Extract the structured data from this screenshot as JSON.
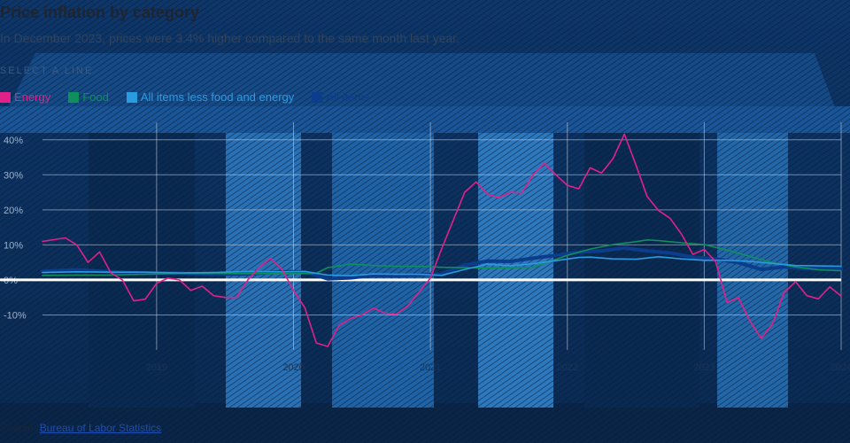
{
  "header": {
    "title": "Price inflation by category",
    "subtitle": "In December 2023, prices were 3.4% higher compared to the same month last year.",
    "select_label": "SELECT A LINE"
  },
  "legend": [
    {
      "label": "Energy",
      "color": "#e0218a"
    },
    {
      "label": "Food",
      "color": "#0e8f5c"
    },
    {
      "label": "All items less food and energy",
      "color": "#2b9be0"
    },
    {
      "label": "All items",
      "color": "#0b3d8c"
    }
  ],
  "source": {
    "label": "Source:",
    "link_text": "Bureau of Labor Statistics"
  },
  "chart_data": {
    "type": "line",
    "title": "Price inflation by category",
    "ylim": [
      -20,
      45
    ],
    "yticks": [
      -10,
      0,
      10,
      20,
      30,
      40
    ],
    "ytick_labels": [
      "-10%",
      "0%",
      "10%",
      "20%",
      "30%",
      "40%"
    ],
    "xlim": [
      "2018-03",
      "2024-01"
    ],
    "xticks": [
      "2019-01",
      "2020-01",
      "2021-01",
      "2022-01",
      "2023-01",
      "2024-01"
    ],
    "xtick_labels": [
      "2019",
      "2020",
      "2021",
      "2022",
      "2023",
      "2024"
    ],
    "grid": true,
    "legend_position": "top-left",
    "series": [
      {
        "name": "Energy",
        "color": "#e0218a",
        "points": [
          [
            "2018-03",
            11
          ],
          [
            "2018-04",
            11.5
          ],
          [
            "2018-05",
            12
          ],
          [
            "2018-06",
            10
          ],
          [
            "2018-07",
            5
          ],
          [
            "2018-08",
            8
          ],
          [
            "2018-09",
            2
          ],
          [
            "2018-10",
            0
          ],
          [
            "2018-11",
            -6
          ],
          [
            "2018-12",
            -5.5
          ],
          [
            "2019-01",
            -1
          ],
          [
            "2019-02",
            0.5
          ],
          [
            "2019-03",
            0
          ],
          [
            "2019-04",
            -3
          ],
          [
            "2019-05",
            -1.8
          ],
          [
            "2019-06",
            -4.5
          ],
          [
            "2019-07",
            -5
          ],
          [
            "2019-08",
            -5
          ],
          [
            "2019-09",
            0
          ],
          [
            "2019-10",
            3.5
          ],
          [
            "2019-11",
            6.2
          ],
          [
            "2019-12",
            3
          ],
          [
            "2020-01",
            -3
          ],
          [
            "2020-02",
            -8
          ],
          [
            "2020-03",
            -18
          ],
          [
            "2020-04",
            -19
          ],
          [
            "2020-05",
            -13
          ],
          [
            "2020-06",
            -11
          ],
          [
            "2020-07",
            -10
          ],
          [
            "2020-08",
            -8
          ],
          [
            "2020-09",
            -9.5
          ],
          [
            "2020-10",
            -9.8
          ],
          [
            "2020-11",
            -7.5
          ],
          [
            "2020-12",
            -3.5
          ],
          [
            "2021-01",
            0.5
          ],
          [
            "2021-02",
            9
          ],
          [
            "2021-03",
            17
          ],
          [
            "2021-04",
            25
          ],
          [
            "2021-05",
            28
          ],
          [
            "2021-06",
            24.5
          ],
          [
            "2021-07",
            23.5
          ],
          [
            "2021-08",
            25
          ],
          [
            "2021-09",
            24.8
          ],
          [
            "2021-10",
            30
          ],
          [
            "2021-11",
            33.3
          ],
          [
            "2021-12",
            30
          ],
          [
            "2022-01",
            27
          ],
          [
            "2022-02",
            26
          ],
          [
            "2022-03",
            32
          ],
          [
            "2022-04",
            30.5
          ],
          [
            "2022-05",
            34.6
          ],
          [
            "2022-06",
            41.6
          ],
          [
            "2022-07",
            32.9
          ],
          [
            "2022-08",
            23.8
          ],
          [
            "2022-09",
            19.8
          ],
          [
            "2022-10",
            17.6
          ],
          [
            "2022-11",
            13.1
          ],
          [
            "2022-12",
            7.3
          ],
          [
            "2023-01",
            8.7
          ],
          [
            "2023-02",
            5.2
          ],
          [
            "2023-03",
            -6.4
          ],
          [
            "2023-04",
            -5.1
          ],
          [
            "2023-05",
            -11.7
          ],
          [
            "2023-06",
            -16.7
          ],
          [
            "2023-07",
            -12.5
          ],
          [
            "2023-08",
            -3.6
          ],
          [
            "2023-09",
            -0.5
          ],
          [
            "2023-10",
            -4.5
          ],
          [
            "2023-11",
            -5.4
          ],
          [
            "2023-12",
            -2
          ],
          [
            "2024-01",
            -4.6
          ]
        ]
      },
      {
        "name": "Food",
        "color": "#0e8f5c",
        "points": [
          [
            "2018-03",
            1.3
          ],
          [
            "2018-06",
            1.4
          ],
          [
            "2018-09",
            1.4
          ],
          [
            "2018-12",
            1.6
          ],
          [
            "2019-03",
            1.9
          ],
          [
            "2019-06",
            1.9
          ],
          [
            "2019-09",
            1.8
          ],
          [
            "2019-12",
            1.8
          ],
          [
            "2020-01",
            1.8
          ],
          [
            "2020-02",
            1.8
          ],
          [
            "2020-03",
            1.9
          ],
          [
            "2020-04",
            3.5
          ],
          [
            "2020-05",
            4
          ],
          [
            "2020-06",
            4.5
          ],
          [
            "2020-08",
            4.1
          ],
          [
            "2020-10",
            3.9
          ],
          [
            "2020-12",
            3.9
          ],
          [
            "2021-02",
            3.6
          ],
          [
            "2021-04",
            3.5
          ],
          [
            "2021-06",
            3.4
          ],
          [
            "2021-08",
            3.5
          ],
          [
            "2021-10",
            3.6
          ],
          [
            "2022-01",
            7
          ],
          [
            "2022-03",
            8.8
          ],
          [
            "2022-05",
            10.1
          ],
          [
            "2022-07",
            10.9
          ],
          [
            "2022-08",
            11.4
          ],
          [
            "2022-09",
            11.2
          ],
          [
            "2022-11",
            10.6
          ],
          [
            "2023-01",
            10.1
          ],
          [
            "2023-03",
            8.5
          ],
          [
            "2023-05",
            6.7
          ],
          [
            "2023-07",
            4.9
          ],
          [
            "2023-09",
            3.7
          ],
          [
            "2023-11",
            2.9
          ],
          [
            "2024-01",
            2.6
          ]
        ]
      },
      {
        "name": "All items less food and energy",
        "color": "#2b9be0",
        "points": [
          [
            "2018-03",
            2.1
          ],
          [
            "2018-06",
            2.3
          ],
          [
            "2018-09",
            2.2
          ],
          [
            "2018-12",
            2.2
          ],
          [
            "2019-03",
            2
          ],
          [
            "2019-06",
            2.1
          ],
          [
            "2019-09",
            2.4
          ],
          [
            "2019-12",
            2.3
          ],
          [
            "2020-02",
            2.4
          ],
          [
            "2020-04",
            1.4
          ],
          [
            "2020-06",
            1.2
          ],
          [
            "2020-08",
            1.7
          ],
          [
            "2020-10",
            1.6
          ],
          [
            "2020-12",
            1.6
          ],
          [
            "2021-02",
            1.3
          ],
          [
            "2021-04",
            3
          ],
          [
            "2021-06",
            4.5
          ],
          [
            "2021-08",
            4
          ],
          [
            "2021-10",
            4.6
          ],
          [
            "2021-12",
            5.5
          ],
          [
            "2022-02",
            6.4
          ],
          [
            "2022-03",
            6.5
          ],
          [
            "2022-05",
            6
          ],
          [
            "2022-07",
            5.9
          ],
          [
            "2022-09",
            6.6
          ],
          [
            "2022-11",
            6
          ],
          [
            "2023-01",
            5.6
          ],
          [
            "2023-03",
            5.6
          ],
          [
            "2023-05",
            5.3
          ],
          [
            "2023-07",
            4.7
          ],
          [
            "2023-09",
            4.1
          ],
          [
            "2023-11",
            4
          ],
          [
            "2024-01",
            3.9
          ]
        ]
      },
      {
        "name": "All items",
        "color": "#0b3d8c",
        "points": [
          [
            "2018-03",
            2.4
          ],
          [
            "2018-06",
            2.9
          ],
          [
            "2018-09",
            2.3
          ],
          [
            "2018-12",
            1.9
          ],
          [
            "2019-03",
            1.9
          ],
          [
            "2019-06",
            1.6
          ],
          [
            "2019-09",
            1.7
          ],
          [
            "2019-12",
            2.3
          ],
          [
            "2020-02",
            2.3
          ],
          [
            "2020-04",
            0.3
          ],
          [
            "2020-06",
            0.6
          ],
          [
            "2020-08",
            1.3
          ],
          [
            "2020-10",
            1.2
          ],
          [
            "2020-12",
            1.4
          ],
          [
            "2021-02",
            1.7
          ],
          [
            "2021-04",
            4.2
          ],
          [
            "2021-06",
            5.4
          ],
          [
            "2021-08",
            5.3
          ],
          [
            "2021-10",
            6.2
          ],
          [
            "2021-12",
            7
          ],
          [
            "2022-02",
            7.9
          ],
          [
            "2022-04",
            8.3
          ],
          [
            "2022-06",
            9.1
          ],
          [
            "2022-08",
            8.3
          ],
          [
            "2022-10",
            7.7
          ],
          [
            "2022-12",
            6.5
          ],
          [
            "2023-02",
            6
          ],
          [
            "2023-04",
            4.9
          ],
          [
            "2023-06",
            3
          ],
          [
            "2023-08",
            3.7
          ],
          [
            "2023-10",
            3.2
          ],
          [
            "2023-12",
            3.4
          ],
          [
            "2024-01",
            3.1
          ]
        ]
      }
    ]
  }
}
